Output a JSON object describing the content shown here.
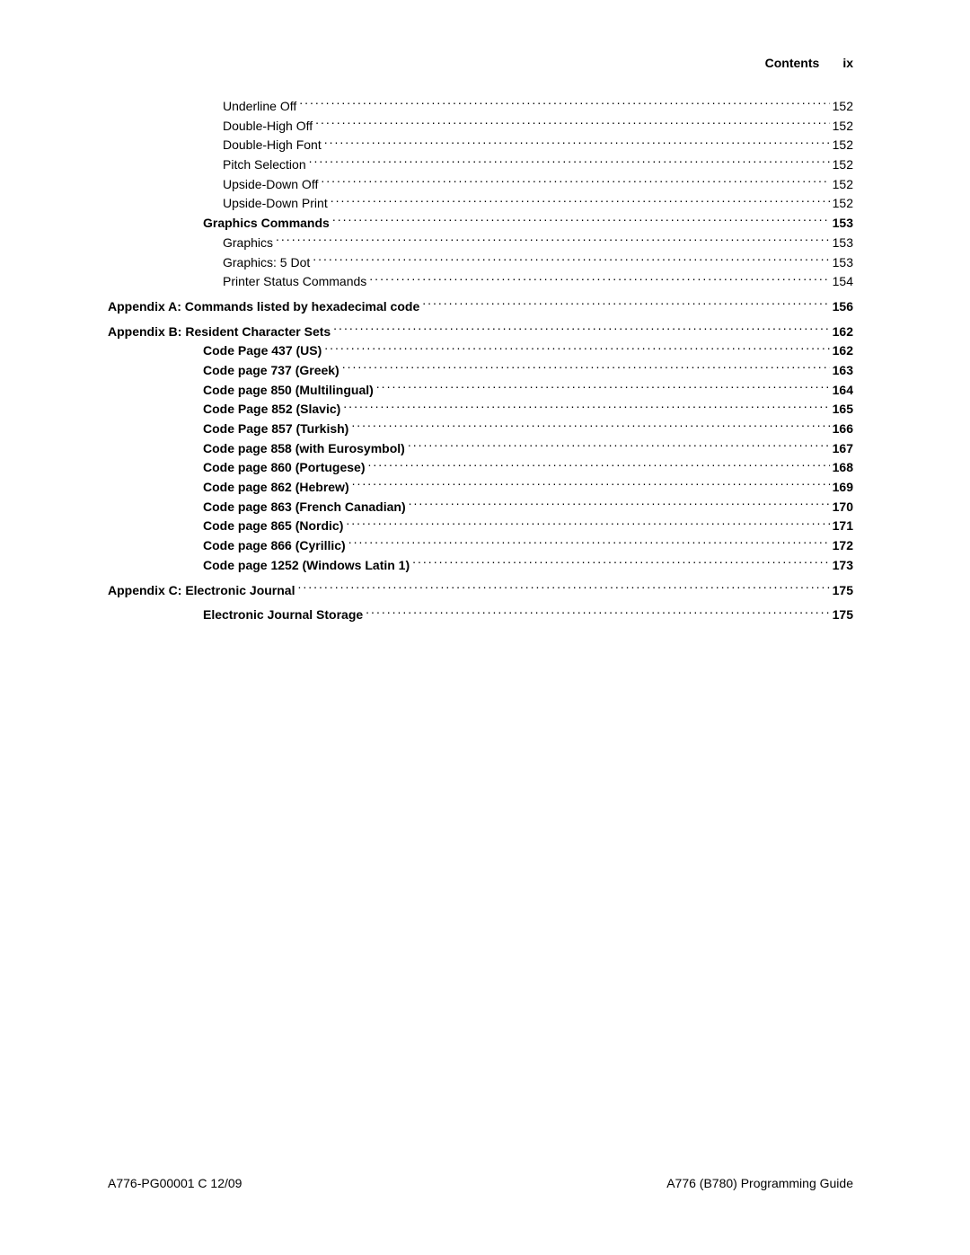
{
  "header": {
    "title": "Contents",
    "page": "ix"
  },
  "toc": [
    {
      "text": "Underline Off",
      "page": "152",
      "indent": 2,
      "bold": false
    },
    {
      "text": "Double-High Off",
      "page": "152",
      "indent": 2,
      "bold": false
    },
    {
      "text": "Double-High Font",
      "page": "152",
      "indent": 2,
      "bold": false
    },
    {
      "text": "Pitch Selection",
      "page": "152",
      "indent": 2,
      "bold": false
    },
    {
      "text": "Upside-Down Off",
      "page": "152",
      "indent": 2,
      "bold": false
    },
    {
      "text": "Upside-Down Print",
      "page": "152",
      "indent": 2,
      "bold": false
    },
    {
      "text": "Graphics Commands",
      "page": "153",
      "indent": 1,
      "bold": true
    },
    {
      "text": "Graphics",
      "page": "153",
      "indent": 2,
      "bold": false
    },
    {
      "text": "Graphics: 5 Dot",
      "page": "153",
      "indent": 2,
      "bold": false
    },
    {
      "text": "Printer Status Commands",
      "page": "154",
      "indent": 2,
      "bold": false
    },
    {
      "text": "Appendix A: Commands listed by hexadecimal code",
      "page": "156",
      "indent": 0,
      "bold": true,
      "gap": true
    },
    {
      "text": "Appendix B: Resident Character Sets",
      "page": "162",
      "indent": 0,
      "bold": true,
      "gap": true
    },
    {
      "text": "Code Page 437 (US)",
      "page": "162",
      "indent": 1,
      "bold": true
    },
    {
      "text": "Code page 737 (Greek)",
      "page": "163",
      "indent": 1,
      "bold": true
    },
    {
      "text": "Code page 850 (Multilingual)",
      "page": "164",
      "indent": 1,
      "bold": true
    },
    {
      "text": "Code Page 852 (Slavic)",
      "page": "165",
      "indent": 1,
      "bold": true
    },
    {
      "text": "Code Page 857 (Turkish)",
      "page": "166",
      "indent": 1,
      "bold": true
    },
    {
      "text": "Code page 858 (with Eurosymbol)",
      "page": "167",
      "indent": 1,
      "bold": true
    },
    {
      "text": "Code page 860 (Portugese)",
      "page": "168",
      "indent": 1,
      "bold": true
    },
    {
      "text": "Code page 862 (Hebrew) ",
      "page": "169",
      "indent": 1,
      "bold": true
    },
    {
      "text": "Code page 863 (French Canadian)",
      "page": "170",
      "indent": 1,
      "bold": true
    },
    {
      "text": "Code page 865 (Nordic)",
      "page": "171",
      "indent": 1,
      "bold": true
    },
    {
      "text": "Code page 866 (Cyrillic)",
      "page": "172",
      "indent": 1,
      "bold": true
    },
    {
      "text": "Code page 1252 (Windows Latin 1)",
      "page": "173",
      "indent": 1,
      "bold": true
    },
    {
      "text": "Appendix C: Electronic Journal",
      "page": "175",
      "indent": 0,
      "bold": true,
      "gap": true
    },
    {
      "text": "Electronic Journal Storage",
      "page": "175",
      "indent": 1,
      "bold": true,
      "gap": true
    }
  ],
  "footer": {
    "left": "A776-PG00001 C  12/09",
    "right": "A776 (B780) Programming Guide"
  }
}
